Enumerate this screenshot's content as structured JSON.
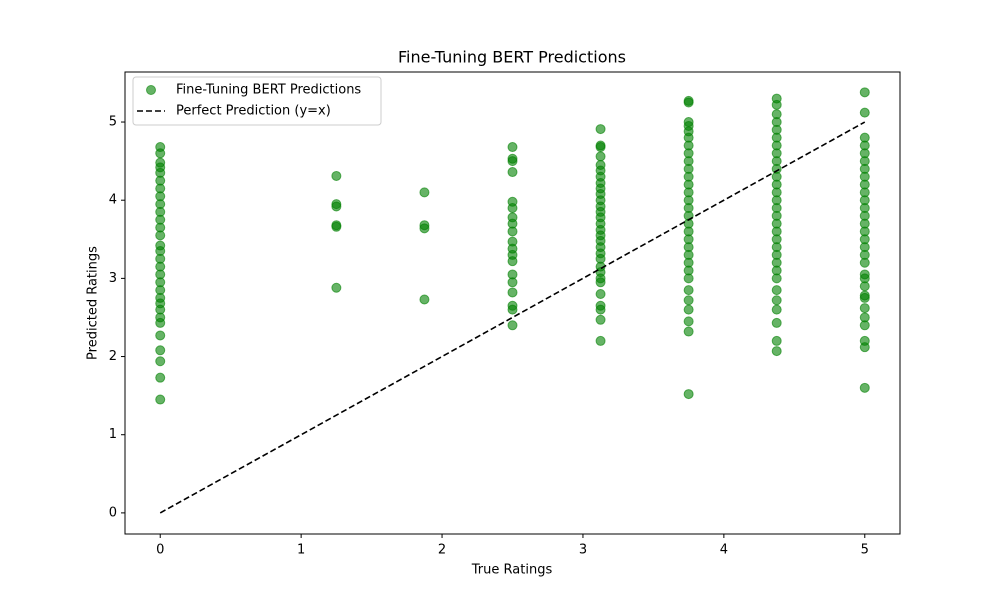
{
  "chart_data": {
    "type": "scatter",
    "title": "Fine-Tuning BERT Predictions",
    "x_label": "True Ratings",
    "y_label": "Predicted Ratings",
    "xlim": [
      -0.25,
      5.25
    ],
    "ylim": [
      -0.27,
      5.64
    ],
    "xticks": [
      0,
      1,
      2,
      3,
      4,
      5
    ],
    "yticks": [
      0,
      1,
      2,
      3,
      4,
      5
    ],
    "legend": "upper left",
    "grid": false,
    "series": [
      {
        "name": "Fine-Tuning BERT Predictions",
        "type": "scatter",
        "color": "#008000",
        "alpha": 0.6,
        "x": [
          0,
          0,
          0,
          0,
          0,
          0,
          0,
          0,
          0,
          0,
          0,
          0,
          0,
          0,
          0,
          0,
          0,
          0,
          0,
          0,
          0,
          0,
          0,
          0,
          0,
          0,
          0,
          0,
          0,
          0,
          1.25,
          1.25,
          1.25,
          1.25,
          1.25,
          1.25,
          1.875,
          1.875,
          1.875,
          1.875,
          2.5,
          2.5,
          2.5,
          2.5,
          2.5,
          2.5,
          2.5,
          2.5,
          2.5,
          2.5,
          2.5,
          2.5,
          2.5,
          2.5,
          2.5,
          2.5,
          2.5,
          2.5,
          2.5,
          3.125,
          3.125,
          3.125,
          3.125,
          3.125,
          3.125,
          3.125,
          3.125,
          3.125,
          3.125,
          3.125,
          3.125,
          3.125,
          3.125,
          3.125,
          3.125,
          3.125,
          3.125,
          3.125,
          3.125,
          3.125,
          3.125,
          3.125,
          3.125,
          3.125,
          3.125,
          3.125,
          3.125,
          3.125,
          3.125,
          3.75,
          3.75,
          3.75,
          3.75,
          3.75,
          3.75,
          3.75,
          3.75,
          3.75,
          3.75,
          3.75,
          3.75,
          3.75,
          3.75,
          3.75,
          3.75,
          3.75,
          3.75,
          3.75,
          3.75,
          3.75,
          3.75,
          3.75,
          3.75,
          3.75,
          3.75,
          3.75,
          3.75,
          3.75,
          3.75,
          4.375,
          4.375,
          4.375,
          4.375,
          4.375,
          4.375,
          4.375,
          4.375,
          4.375,
          4.375,
          4.375,
          4.375,
          4.375,
          4.375,
          4.375,
          4.375,
          4.375,
          4.375,
          4.375,
          4.375,
          4.375,
          4.375,
          4.375,
          4.375,
          4.375,
          4.375,
          4.375,
          4.375,
          4.375,
          4.375,
          5,
          5,
          5,
          5,
          5,
          5,
          5,
          5,
          5,
          5,
          5,
          5,
          5,
          5,
          5,
          5,
          5,
          5,
          5,
          5,
          5,
          5,
          5,
          5,
          5,
          5,
          5,
          5,
          5,
          5
        ],
        "values": [
          4.68,
          4.6,
          4.48,
          4.42,
          4.35,
          4.25,
          4.15,
          4.05,
          3.95,
          3.85,
          3.75,
          3.65,
          3.55,
          3.42,
          3.35,
          3.25,
          3.15,
          3.05,
          2.95,
          2.85,
          2.75,
          2.68,
          2.6,
          2.5,
          2.43,
          2.27,
          2.08,
          1.94,
          1.73,
          1.45,
          4.31,
          3.95,
          3.92,
          3.68,
          3.66,
          2.88,
          4.1,
          3.68,
          3.64,
          2.73,
          4.68,
          4.53,
          4.5,
          4.36,
          3.98,
          3.9,
          3.78,
          3.7,
          3.6,
          3.47,
          3.38,
          3.3,
          3.22,
          3.05,
          2.95,
          2.82,
          2.65,
          2.6,
          2.4,
          4.91,
          4.7,
          4.68,
          4.56,
          4.45,
          4.38,
          4.3,
          4.22,
          4.15,
          4.08,
          4.0,
          3.92,
          3.85,
          3.78,
          3.7,
          3.62,
          3.55,
          3.48,
          3.4,
          3.32,
          3.25,
          3.15,
          3.08,
          3.0,
          2.95,
          2.8,
          2.65,
          2.6,
          2.47,
          2.2,
          5.27,
          5.25,
          5.0,
          4.95,
          4.88,
          4.8,
          4.7,
          4.6,
          4.5,
          4.4,
          4.3,
          4.2,
          4.1,
          4.0,
          3.9,
          3.8,
          3.7,
          3.6,
          3.5,
          3.4,
          3.3,
          3.2,
          3.1,
          3.0,
          2.85,
          2.72,
          2.6,
          2.45,
          2.32,
          1.52,
          5.3,
          5.22,
          5.1,
          5.0,
          4.9,
          4.8,
          4.7,
          4.6,
          4.5,
          4.4,
          4.3,
          4.2,
          4.1,
          4.0,
          3.9,
          3.8,
          3.7,
          3.6,
          3.5,
          3.4,
          3.3,
          3.2,
          3.1,
          3.0,
          2.85,
          2.72,
          2.6,
          2.43,
          2.2,
          2.07,
          5.38,
          5.12,
          4.8,
          4.7,
          4.6,
          4.5,
          4.4,
          4.3,
          4.2,
          4.1,
          4.0,
          3.9,
          3.8,
          3.7,
          3.6,
          3.5,
          3.4,
          3.3,
          3.2,
          3.05,
          3.0,
          2.9,
          2.78,
          2.62,
          2.5,
          2.4,
          2.2,
          2.12,
          1.6,
          2.75
        ]
      },
      {
        "name": "Perfect Prediction (y=x)",
        "type": "line",
        "color": "#000000",
        "dashed": true,
        "x": [
          0,
          5
        ],
        "values": [
          0,
          5
        ]
      }
    ]
  }
}
